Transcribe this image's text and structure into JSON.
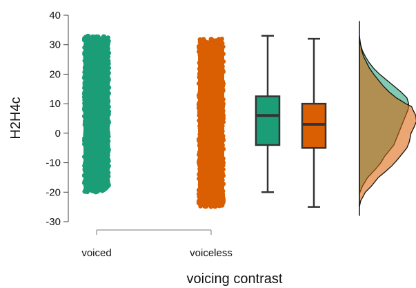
{
  "chart_data": {
    "type": "scatter",
    "xlabel": "voicing contrast",
    "ylabel": "H2H4c",
    "ylim": [
      -30,
      40
    ],
    "yticks": [
      -30,
      -20,
      -10,
      0,
      10,
      20,
      30,
      40
    ],
    "categories": [
      "voiced",
      "voiceless"
    ],
    "grid": false,
    "legend": "none",
    "panels": [
      "jittered-points",
      "boxplots",
      "density"
    ],
    "series": [
      {
        "category": "voiced",
        "color": "#1b9e77",
        "range": [
          -20,
          33
        ],
        "box": {
          "min": -20,
          "q1": -4,
          "median": 6,
          "q3": 12.5,
          "max": 33
        },
        "density": [
          [
            -20,
            0.01
          ],
          [
            -18,
            0.05
          ],
          [
            -15,
            0.14
          ],
          [
            -12,
            0.28
          ],
          [
            -10,
            0.36
          ],
          [
            -8,
            0.42
          ],
          [
            -6,
            0.5
          ],
          [
            -4,
            0.58
          ],
          [
            -2,
            0.62
          ],
          [
            0,
            0.66
          ],
          [
            2,
            0.7
          ],
          [
            4,
            0.74
          ],
          [
            6,
            0.78
          ],
          [
            8,
            0.82
          ],
          [
            10,
            0.83
          ],
          [
            12,
            0.8
          ],
          [
            14,
            0.7
          ],
          [
            16,
            0.58
          ],
          [
            18,
            0.46
          ],
          [
            20,
            0.34
          ],
          [
            22,
            0.24
          ],
          [
            24,
            0.16
          ],
          [
            26,
            0.1
          ],
          [
            28,
            0.05
          ],
          [
            30,
            0.02
          ],
          [
            33,
            0.0
          ]
        ]
      },
      {
        "category": "voiceless",
        "color": "#d95f02",
        "range": [
          -25,
          32
        ],
        "box": {
          "min": -25,
          "q1": -5,
          "median": 3,
          "q3": 10,
          "max": 32
        },
        "density": [
          [
            -25,
            0.0
          ],
          [
            -23,
            0.02
          ],
          [
            -20,
            0.1
          ],
          [
            -18,
            0.2
          ],
          [
            -15,
            0.32
          ],
          [
            -13,
            0.44
          ],
          [
            -11,
            0.55
          ],
          [
            -9,
            0.64
          ],
          [
            -7,
            0.72
          ],
          [
            -5,
            0.8
          ],
          [
            -3,
            0.84
          ],
          [
            -1,
            0.86
          ],
          [
            0,
            0.87
          ],
          [
            2,
            0.92
          ],
          [
            4,
            0.96
          ],
          [
            6,
            0.95
          ],
          [
            8,
            0.9
          ],
          [
            9,
            0.88
          ],
          [
            10,
            0.78
          ],
          [
            12,
            0.62
          ],
          [
            14,
            0.5
          ],
          [
            16,
            0.4
          ],
          [
            18,
            0.32
          ],
          [
            20,
            0.24
          ],
          [
            22,
            0.17
          ],
          [
            24,
            0.12
          ],
          [
            26,
            0.07
          ],
          [
            28,
            0.04
          ],
          [
            30,
            0.02
          ],
          [
            32,
            0.0
          ]
        ]
      }
    ]
  }
}
